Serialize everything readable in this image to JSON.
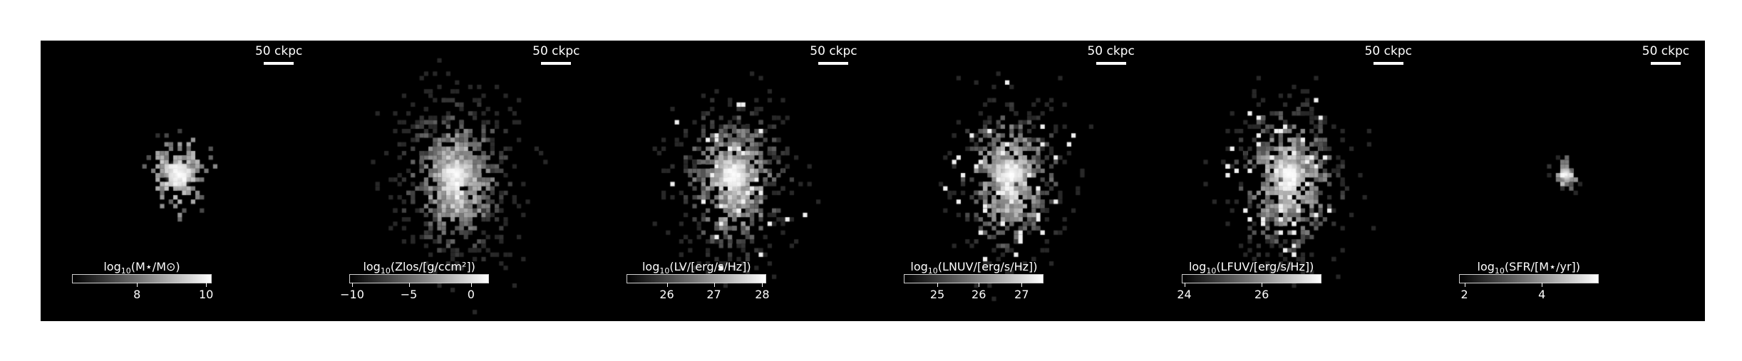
{
  "scalebar_text": "50 ckpc",
  "panels": [
    {
      "id": "mass",
      "label_prefix": "log",
      "label_sub": "10",
      "label_body": "(M⋆/M⊙)",
      "ticks": [
        {
          "text": "8",
          "pos": 0.47
        },
        {
          "text": "10",
          "pos": 0.97
        }
      ],
      "map": "mass"
    },
    {
      "id": "metal",
      "label_prefix": "log",
      "label_sub": "10",
      "label_body": "(Zlos/[g/ccm²])",
      "ticks": [
        {
          "text": "−10",
          "pos": 0.02
        },
        {
          "text": "−5",
          "pos": 0.43
        },
        {
          "text": "0",
          "pos": 0.88
        }
      ],
      "map": "wide"
    },
    {
      "id": "lv",
      "label_prefix": "log",
      "label_sub": "10",
      "label_body": "(LV/[erg/s/Hz])",
      "ticks": [
        {
          "text": "26",
          "pos": 0.29
        },
        {
          "text": "27",
          "pos": 0.63
        },
        {
          "text": "28",
          "pos": 0.98
        }
      ],
      "map": "lum"
    },
    {
      "id": "lnuv",
      "label_prefix": "log",
      "label_sub": "10",
      "label_body": "(LNUV/[erg/s/Hz])",
      "ticks": [
        {
          "text": "25",
          "pos": 0.24
        },
        {
          "text": "26",
          "pos": 0.54
        },
        {
          "text": "27",
          "pos": 0.85
        }
      ],
      "map": "lum"
    },
    {
      "id": "lfuv",
      "label_prefix": "log",
      "label_sub": "10",
      "label_body": "(LFUV/[erg/s/Hz])",
      "ticks": [
        {
          "text": "24",
          "pos": 0.02
        },
        {
          "text": "26",
          "pos": 0.58
        }
      ],
      "map": "lum"
    },
    {
      "id": "sfr",
      "label_prefix": "log",
      "label_sub": "10",
      "label_body": "(SFR/[M⋆/yr])",
      "ticks": [
        {
          "text": "2",
          "pos": 0.04
        },
        {
          "text": "4",
          "pos": 0.6
        }
      ],
      "map": "sfr"
    }
  ],
  "colors": {
    "background": "#000000",
    "text": "#ffffff"
  }
}
